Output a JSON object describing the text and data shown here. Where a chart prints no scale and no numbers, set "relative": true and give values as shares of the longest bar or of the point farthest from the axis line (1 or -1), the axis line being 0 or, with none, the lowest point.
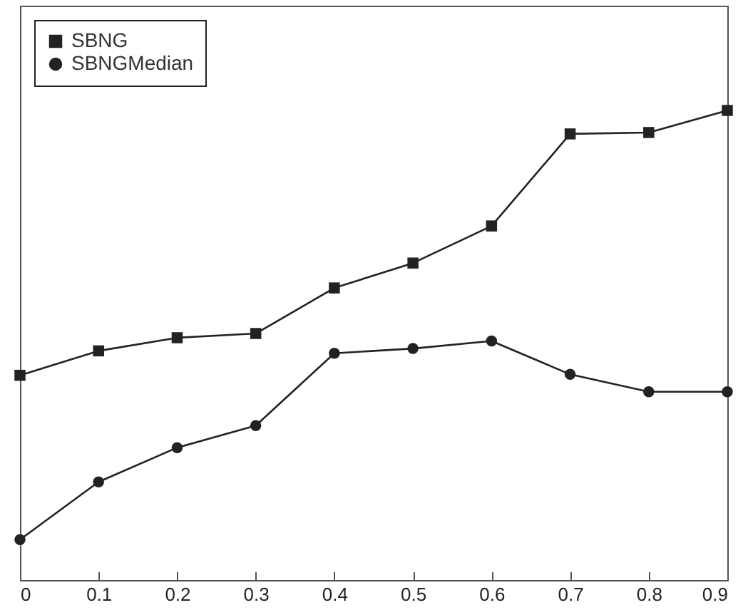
{
  "chart_data": {
    "type": "line",
    "relative": true,
    "x": [
      0,
      0.1,
      0.2,
      0.3,
      0.4,
      0.5,
      0.6,
      0.7,
      0.8,
      0.9
    ],
    "xlim": [
      0,
      0.9
    ],
    "xticks": [
      0,
      0.1,
      0.2,
      0.3,
      0.4,
      0.5,
      0.6,
      0.7,
      0.8,
      0.9
    ],
    "series": [
      {
        "name": "SBNG",
        "color": "#222222",
        "marker": "square",
        "values": [
          0.436,
          0.488,
          0.516,
          0.525,
          0.622,
          0.675,
          0.754,
          0.95,
          0.953,
          1
        ]
      },
      {
        "name": "SBNGMedian",
        "color": "#222222",
        "marker": "circle",
        "values": [
          0.086,
          0.209,
          0.282,
          0.329,
          0.483,
          0.493,
          0.509,
          0.438,
          0.401,
          0.401
        ]
      }
    ],
    "legend": "top left",
    "grid": false,
    "line_style": "solid"
  }
}
